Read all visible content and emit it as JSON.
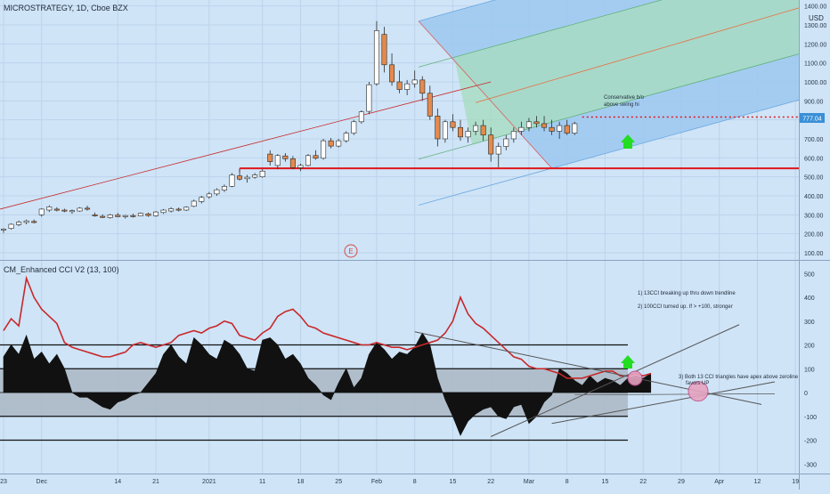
{
  "header": {
    "title": "MICROSTRATEGY, 1D, Cboe BZX",
    "currency": "USD"
  },
  "price_panel": {
    "last_price_label": "777.04",
    "annotation_lines": [
      "Conservative b/o",
      "above swing hi"
    ],
    "event_marker": "E"
  },
  "cci_panel": {
    "title": "CM_Enhanced CCI V2 (13, 100)",
    "notes": [
      "1) 13CCI breaking up thru down trendline",
      "2) 100CCI turned up.  If  > +100, stronger",
      "3)  Both 13 CCI triangles have apex above zeroline",
      "favors UP"
    ]
  },
  "x_axis": {
    "ticks": [
      {
        "label": "23",
        "i": 0
      },
      {
        "label": "Dec",
        "i": 5
      },
      {
        "label": "14",
        "i": 15
      },
      {
        "label": "21",
        "i": 20
      },
      {
        "label": "2021",
        "i": 27
      },
      {
        "label": "11",
        "i": 34
      },
      {
        "label": "18",
        "i": 39
      },
      {
        "label": "25",
        "i": 44
      },
      {
        "label": "Feb",
        "i": 49
      },
      {
        "label": "8",
        "i": 54
      },
      {
        "label": "15",
        "i": 59
      },
      {
        "label": "22",
        "i": 64
      },
      {
        "label": "Mar",
        "i": 69
      },
      {
        "label": "8",
        "i": 74
      },
      {
        "label": "15",
        "i": 79
      },
      {
        "label": "22",
        "i": 84
      },
      {
        "label": "29",
        "i": 89
      },
      {
        "label": "Apr",
        "i": 94
      },
      {
        "label": "12",
        "i": 99
      },
      {
        "label": "19",
        "i": 104
      }
    ]
  },
  "colors": {
    "background": "#cfe4f7",
    "up_candle": "#ffffff",
    "down_candle": "#e48a4c",
    "ma_line": "#c8282a",
    "support_line": "#e0161b",
    "cci_fill": "#111111",
    "zone_fill": "#aab7c4",
    "pitchfork_blue": "#9cc8f0",
    "pitchfork_green": "#a8dcc0",
    "arrow": "#22dd22"
  },
  "chart_data": [
    {
      "type": "candlestick",
      "title": "MICROSTRATEGY, 1D, Cboe BZX",
      "y_axis": {
        "unit": "USD",
        "range": [
          50,
          1400
        ],
        "ticks": [
          100,
          200,
          300,
          400,
          500,
          600,
          700,
          800,
          900,
          1000,
          1100,
          1200,
          1300,
          1400
        ]
      },
      "last_price": 777.04,
      "support_level": 545,
      "resistance_level": 815,
      "candles_ohlc": [
        [
          220,
          230,
          205,
          225
        ],
        [
          228,
          255,
          222,
          250
        ],
        [
          248,
          270,
          240,
          262
        ],
        [
          260,
          275,
          250,
          268
        ],
        [
          265,
          275,
          255,
          262
        ],
        [
          300,
          335,
          290,
          330
        ],
        [
          325,
          350,
          315,
          342
        ],
        [
          330,
          340,
          318,
          325
        ],
        [
          325,
          332,
          314,
          320
        ],
        [
          318,
          328,
          305,
          322
        ],
        [
          320,
          340,
          316,
          335
        ],
        [
          335,
          348,
          322,
          330
        ],
        [
          300,
          312,
          290,
          298
        ],
        [
          292,
          302,
          283,
          288
        ],
        [
          285,
          305,
          280,
          300
        ],
        [
          298,
          310,
          288,
          290
        ],
        [
          290,
          300,
          280,
          296
        ],
        [
          296,
          306,
          286,
          294
        ],
        [
          294,
          312,
          292,
          308
        ],
        [
          305,
          312,
          290,
          296
        ],
        [
          295,
          320,
          290,
          315
        ],
        [
          312,
          330,
          305,
          325
        ],
        [
          320,
          340,
          312,
          332
        ],
        [
          330,
          338,
          318,
          326
        ],
        [
          325,
          345,
          320,
          340
        ],
        [
          345,
          380,
          340,
          372
        ],
        [
          370,
          400,
          360,
          392
        ],
        [
          395,
          420,
          385,
          410
        ],
        [
          410,
          440,
          400,
          432
        ],
        [
          430,
          460,
          420,
          450
        ],
        [
          450,
          520,
          445,
          510
        ],
        [
          505,
          540,
          480,
          488
        ],
        [
          490,
          510,
          470,
          498
        ],
        [
          498,
          520,
          490,
          510
        ],
        [
          500,
          540,
          495,
          530
        ],
        [
          620,
          640,
          560,
          580
        ],
        [
          560,
          620,
          540,
          612
        ],
        [
          610,
          625,
          580,
          595
        ],
        [
          595,
          610,
          540,
          548
        ],
        [
          548,
          570,
          530,
          560
        ],
        [
          560,
          620,
          555,
          612
        ],
        [
          612,
          640,
          590,
          598
        ],
        [
          598,
          700,
          590,
          690
        ],
        [
          690,
          705,
          650,
          662
        ],
        [
          662,
          700,
          655,
          690
        ],
        [
          690,
          740,
          680,
          730
        ],
        [
          730,
          800,
          720,
          790
        ],
        [
          790,
          850,
          780,
          842
        ],
        [
          845,
          1000,
          830,
          985
        ],
        [
          990,
          1320,
          980,
          1270
        ],
        [
          1250,
          1290,
          1050,
          1090
        ],
        [
          1090,
          1150,
          980,
          1000
        ],
        [
          1000,
          1060,
          940,
          960
        ],
        [
          960,
          1010,
          930,
          990
        ],
        [
          990,
          1060,
          970,
          1010
        ],
        [
          1010,
          1030,
          900,
          940
        ],
        [
          940,
          980,
          800,
          820
        ],
        [
          820,
          860,
          660,
          700
        ],
        [
          700,
          800,
          680,
          790
        ],
        [
          790,
          830,
          740,
          760
        ],
        [
          760,
          800,
          690,
          710
        ],
        [
          710,
          760,
          680,
          740
        ],
        [
          740,
          790,
          720,
          770
        ],
        [
          770,
          800,
          690,
          720
        ],
        [
          720,
          760,
          580,
          620
        ],
        [
          620,
          680,
          550,
          660
        ],
        [
          660,
          720,
          640,
          700
        ],
        [
          700,
          760,
          680,
          740
        ],
        [
          740,
          790,
          720,
          760
        ],
        [
          760,
          810,
          740,
          790
        ],
        [
          790,
          820,
          760,
          780
        ],
        [
          780,
          820,
          740,
          760
        ],
        [
          760,
          800,
          720,
          740
        ],
        [
          740,
          790,
          700,
          770
        ],
        [
          770,
          800,
          720,
          730
        ],
        [
          730,
          790,
          720,
          780
        ]
      ]
    },
    {
      "type": "line",
      "title": "CM_Enhanced CCI V2 (13, 100)",
      "y_axis": {
        "range": [
          -320,
          520
        ],
        "ticks": [
          500,
          400,
          300,
          200,
          100,
          0,
          -100,
          -200,
          -300
        ]
      },
      "levels": [
        200,
        100,
        0,
        -100,
        -200
      ],
      "series": [
        {
          "name": "100CCI",
          "values": [
            260,
            310,
            280,
            480,
            400,
            350,
            320,
            290,
            210,
            190,
            180,
            170,
            160,
            150,
            150,
            160,
            170,
            200,
            210,
            200,
            190,
            200,
            210,
            240,
            250,
            260,
            250,
            270,
            280,
            300,
            290,
            240,
            230,
            220,
            250,
            270,
            320,
            340,
            350,
            320,
            280,
            270,
            250,
            240,
            230,
            220,
            210,
            200,
            200,
            210,
            200,
            190,
            190,
            180,
            190,
            200,
            210,
            220,
            250,
            300,
            400,
            330,
            290,
            270,
            240,
            210,
            180,
            150,
            140,
            110,
            100,
            100,
            90,
            80,
            60,
            60,
            60,
            70,
            80,
            90,
            90,
            70,
            70,
            80,
            70,
            80
          ]
        },
        {
          "name": "13CCI",
          "values": [
            150,
            200,
            160,
            240,
            140,
            170,
            120,
            160,
            100,
            0,
            -20,
            -20,
            -40,
            -60,
            -70,
            -40,
            -30,
            -10,
            0,
            40,
            80,
            160,
            200,
            150,
            120,
            230,
            200,
            160,
            140,
            220,
            200,
            160,
            100,
            90,
            220,
            230,
            200,
            140,
            160,
            120,
            60,
            30,
            -10,
            -30,
            40,
            100,
            20,
            60,
            160,
            210,
            180,
            140,
            170,
            160,
            190,
            250,
            200,
            60,
            -30,
            -100,
            -180,
            -120,
            -90,
            -70,
            -60,
            -100,
            -110,
            -60,
            -50,
            -130,
            -100,
            -40,
            -10,
            100,
            80,
            50,
            30,
            70,
            40,
            60,
            50,
            30,
            60,
            70,
            60,
            80
          ]
        }
      ]
    }
  ]
}
